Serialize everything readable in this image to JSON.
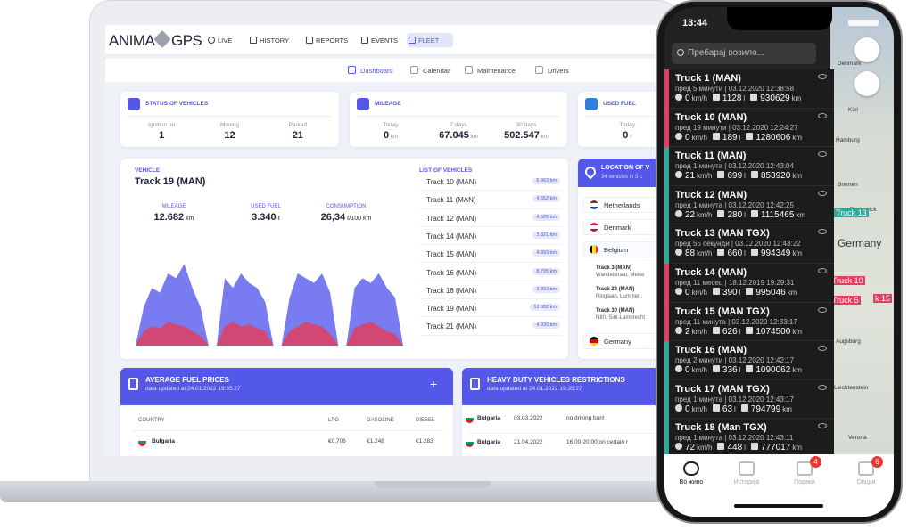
{
  "nav": {
    "brand": "ANIMA",
    "brand2": "GPS",
    "items": [
      "LIVE",
      "HISTORY",
      "REPORTS",
      "EVENTS",
      "FLEET"
    ]
  },
  "subnav": [
    "Dashboard",
    "Calendar",
    "Maintenance",
    "Drivers"
  ],
  "status": {
    "title": "STATUS OF VEHICLES",
    "stats": [
      {
        "label": "Ignition on",
        "value": 1
      },
      {
        "label": "Moving",
        "value": 12
      },
      {
        "label": "Parked",
        "value": 21
      }
    ]
  },
  "mileage": {
    "title": "MILEAGE",
    "stats": [
      {
        "label": "Today",
        "value": "0",
        "unit": "km"
      },
      {
        "label": "7 days",
        "value": "67.045",
        "unit": "km"
      },
      {
        "label": "30 days",
        "value": "502.547",
        "unit": "km"
      }
    ]
  },
  "fuel": {
    "title": "USED FUEL",
    "stats": [
      {
        "label": "Today",
        "value": "0",
        "unit": "ℓ"
      }
    ]
  },
  "vehicle": {
    "label": "VEHICLE",
    "name": "Track 19 (MAN)",
    "metrics": [
      {
        "label": "MILEAGE",
        "value": "12.682",
        "unit": "km"
      },
      {
        "label": "USED FUEL",
        "value": "3.340",
        "unit": "ℓ"
      },
      {
        "label": "CONSUMPTION",
        "value": "26,34",
        "unit": "ℓ/100 km"
      }
    ],
    "chart": {
      "type": "area",
      "ylim": [
        0,
        100
      ],
      "series": [
        {
          "color": "#6a6ef0",
          "values": [
            0,
            40,
            60,
            55,
            75,
            70,
            85,
            60,
            40,
            0,
            0,
            70,
            60,
            75,
            65,
            60,
            45,
            0,
            0,
            50,
            75,
            70,
            65,
            75,
            55,
            0,
            0,
            60,
            70,
            65,
            75,
            60,
            50,
            0
          ]
        },
        {
          "color": "#e0405f",
          "values": [
            0,
            15,
            20,
            18,
            25,
            22,
            20,
            15,
            10,
            0,
            0,
            20,
            25,
            20,
            22,
            18,
            15,
            0,
            0,
            15,
            20,
            25,
            22,
            20,
            12,
            0,
            0,
            18,
            22,
            25,
            20,
            15,
            12,
            0
          ]
        }
      ]
    }
  },
  "vehicle_list": {
    "title": "LIST OF VEHICLES",
    "rows": [
      {
        "name": "Track 10 (MAN)",
        "km": "5.963 km"
      },
      {
        "name": "Track 11 (MAN)",
        "km": "4.552 km"
      },
      {
        "name": "Track 12 (MAN)",
        "km": "4.525 km"
      },
      {
        "name": "Track 14 (MAN)",
        "km": "3.821 km"
      },
      {
        "name": "Track 15 (MAN)",
        "km": "4.893 km"
      },
      {
        "name": "Track 16 (MAN)",
        "km": "8.795 km"
      },
      {
        "name": "Track 18 (MAN)",
        "km": "2.892 km"
      },
      {
        "name": "Track 19 (MAN)",
        "km": "12.682 km"
      },
      {
        "name": "Track 21 (MAN)",
        "km": "4.930 km"
      }
    ]
  },
  "location": {
    "title": "LOCATION OF V",
    "subtitle": "34 vehicles in 5 c",
    "countries": [
      "Netherlands",
      "Denmark",
      "Belgium",
      "Germany"
    ],
    "trucks": [
      {
        "name": "Track 3 (MAN)",
        "address": "Wandelstraat, Meise"
      },
      {
        "name": "Track 23 (MAN)",
        "address": "Ringlaan, Lummen,"
      },
      {
        "name": "Track 30 (MAN)",
        "address": "N80, Sint-Lambrecht"
      }
    ]
  },
  "fuel_prices": {
    "title": "AVERAGE FUEL PRICES",
    "subtitle": "data updated at 24.01.2022 19:35:27",
    "add": "+",
    "headers": [
      "COUNTRY",
      "LPG",
      "GASOLINE",
      "DIESEL"
    ],
    "rows": [
      [
        "Bulgaria",
        "€0,706",
        "€1,248",
        "€1,283"
      ]
    ]
  },
  "restrictions": {
    "title": "HEAVY DUTY VEHICLES RESTRICTIONS",
    "subtitle": "data updated at 24.01.2022 19:35:27",
    "rows": [
      [
        "Bulgaria",
        "03.03.2022",
        "no driving ban!"
      ],
      [
        "Bulgaria",
        "21.04.2022",
        "16:00-20:00 on certain r"
      ]
    ]
  },
  "phone": {
    "time": "13:44",
    "search": "Пребарај возило...",
    "units": {
      "speed": "km/h",
      "fuel": "l",
      "odometer": "km"
    },
    "vehicles": [
      {
        "name": "Truck 1 (MAN)",
        "updated": "пред 5 минути | 03.12.2020 12:38:58",
        "speed": "0",
        "fuel": "1128",
        "odometer": "930629",
        "color": "#e0405f"
      },
      {
        "name": "Truck 10 (MAN)",
        "updated": "пред 19 минути | 03.12.2020 12:24:27",
        "speed": "0",
        "fuel": "189",
        "odometer": "1280606",
        "color": "#e0405f"
      },
      {
        "name": "Truck 11 (MAN)",
        "updated": "пред 1 минута | 03.12.2020 12:43:04",
        "speed": "21",
        "fuel": "699",
        "odometer": "853920",
        "color": "#2fa89a"
      },
      {
        "name": "Truck 12 (MAN)",
        "updated": "пред 1 минута | 03.12.2020 12:42:25",
        "speed": "22",
        "fuel": "280",
        "odometer": "1115465",
        "color": "#2fa89a"
      },
      {
        "name": "Truck 13 (MAN TGX)",
        "updated": "пред 55 секунди | 03.12.2020 12:43:22",
        "speed": "88",
        "fuel": "660",
        "odometer": "994349",
        "color": "#2fa89a"
      },
      {
        "name": "Truck 14 (MAN)",
        "updated": "пред 11 месец | 18.12.2019 19:29:31",
        "speed": "0",
        "fuel": "390",
        "odometer": "995046",
        "color": "#e0405f"
      },
      {
        "name": "Truck 15 (MAN TGX)",
        "updated": "пред 11 минута | 03.12.2020 12:33:17",
        "speed": "2",
        "fuel": "626",
        "odometer": "1074500",
        "color": "#e0405f"
      },
      {
        "name": "Truck 16 (MAN)",
        "updated": "пред 2 минути | 03.12.2020 12:42:17",
        "speed": "0",
        "fuel": "336",
        "odometer": "1090062",
        "color": "#2fa89a"
      },
      {
        "name": "Truck 17 (MAN TGX)",
        "updated": "пред 1 минута | 03.12.2020 12:43:17",
        "speed": "0",
        "fuel": "63",
        "odometer": "794799",
        "color": "#2fa89a"
      },
      {
        "name": "Truck 18 (Man TGX)",
        "updated": "пред 1 минута | 03.12.2020 12:43:11",
        "speed": "72",
        "fuel": "448",
        "odometer": "777017",
        "color": "#2fa89a"
      }
    ],
    "map_labels": [
      "Denmark",
      "Kiel",
      "Hamburg",
      "Bremen",
      "Brunswick",
      "Germany",
      "Augsburg",
      "Liechtenstein",
      "Verona"
    ],
    "map_markers": [
      {
        "text": "Truck 13",
        "color": "#2fa89a"
      },
      {
        "text": "Truck 10",
        "color": "#e0405f"
      },
      {
        "text": "Truck 5",
        "color": "#e0405f"
      },
      {
        "text": "k 15",
        "color": "#e0405f"
      }
    ],
    "tabs": [
      {
        "label": "Во живо"
      },
      {
        "label": "Историја"
      },
      {
        "label": "Пораки",
        "badge": 4
      },
      {
        "label": "Опции",
        "badge": 6
      }
    ]
  }
}
